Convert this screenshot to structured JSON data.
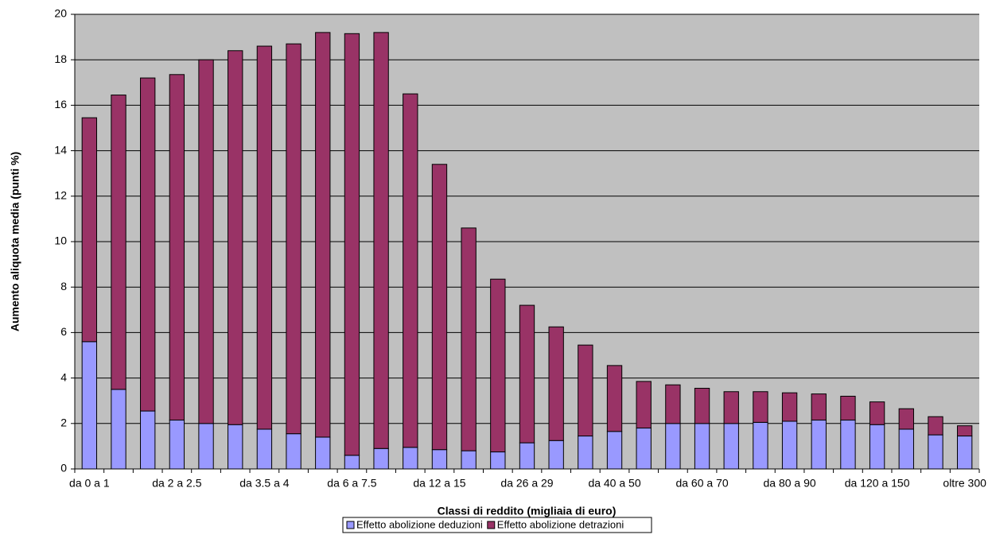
{
  "chart_data": {
    "type": "stacked-bar",
    "y_label": "Aumento aliquota media (punti %)",
    "x_label": "Classi di reddito (migliaia di euro)",
    "categories": [
      "da 0 a 1",
      null,
      null,
      "da 2 a 2.5",
      null,
      null,
      "da 3.5 a 4",
      null,
      null,
      "da 6 a 7.5",
      null,
      null,
      "da 12 a 15",
      null,
      null,
      "da 26 a 29",
      null,
      null,
      "da 40 a 50",
      null,
      null,
      "da 60 a 70",
      null,
      null,
      "da 80 a 90",
      null,
      null,
      "da 120 a 150",
      null,
      null,
      "oltre 300"
    ],
    "series": [
      {
        "name": "Effetto abolizione deduzioni",
        "color": "#9999ff",
        "values": [
          5.6,
          3.5,
          2.55,
          2.15,
          2.0,
          1.95,
          1.75,
          1.55,
          1.4,
          0.6,
          0.9,
          0.95,
          0.85,
          0.8,
          0.75,
          1.15,
          1.25,
          1.45,
          1.65,
          1.8,
          2.0,
          2.0,
          2.0,
          2.05,
          2.1,
          2.15,
          2.15,
          1.95,
          1.75,
          1.5,
          1.45
        ]
      },
      {
        "name": "Effetto abolizione detrazioni",
        "color": "#993366",
        "values": [
          9.85,
          12.95,
          14.65,
          15.2,
          16.0,
          16.45,
          16.85,
          17.15,
          17.8,
          18.55,
          18.3,
          15.55,
          12.55,
          9.8,
          7.6,
          6.05,
          5.0,
          4.0,
          2.9,
          2.05,
          1.7,
          1.55,
          1.4,
          1.35,
          1.25,
          1.15,
          1.05,
          1.0,
          0.9,
          0.8,
          0.45
        ]
      }
    ],
    "ylim": [
      0,
      20
    ],
    "yticks": [
      0,
      2,
      4,
      6,
      8,
      10,
      12,
      14,
      16,
      18,
      20
    ],
    "grid": true
  }
}
